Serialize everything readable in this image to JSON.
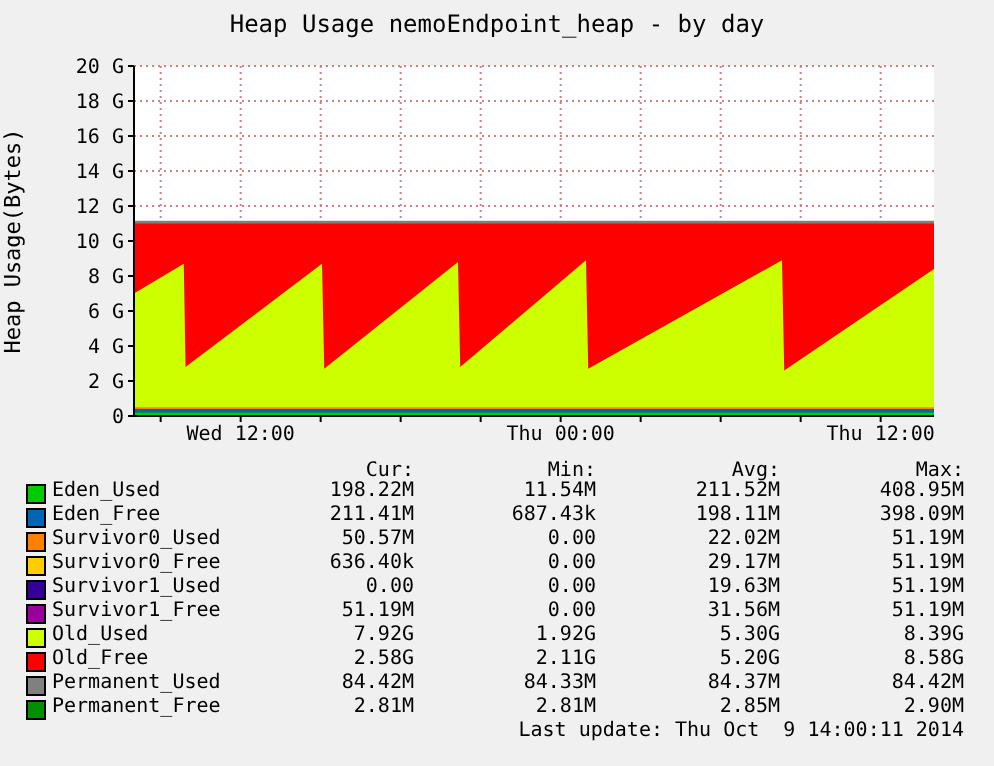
{
  "chart_data": {
    "type": "area",
    "stacked": true,
    "title": "Heap Usage nemoEndpoint_heap - by day",
    "ylabel": "Heap Usage(Bytes)",
    "x": [
      "2014-10-08T08:00",
      "2014-10-08T09:52",
      "2014-10-08T09:56",
      "2014-10-08T15:03",
      "2014-10-08T15:08",
      "2014-10-08T20:09",
      "2014-10-08T20:14",
      "2014-10-09T00:57",
      "2014-10-09T01:02",
      "2014-10-09T08:18",
      "2014-10-09T08:23",
      "2014-10-09T14:00"
    ],
    "series": [
      {
        "name": "Eden_Used",
        "color": "#00cc00",
        "values": [
          0.2,
          0.2,
          0.2,
          0.2,
          0.2,
          0.2,
          0.2,
          0.2,
          0.2,
          0.2,
          0.2,
          0.2
        ]
      },
      {
        "name": "Eden_Free",
        "color": "#0066b3",
        "values": [
          0.2,
          0.2,
          0.2,
          0.2,
          0.2,
          0.2,
          0.2,
          0.2,
          0.2,
          0.2,
          0.2,
          0.2
        ]
      },
      {
        "name": "Survivor0_Used",
        "color": "#ff8000",
        "values": [
          0.1,
          0.1,
          0.1,
          0.1,
          0.1,
          0.1,
          0.1,
          0.1,
          0.1,
          0.1,
          0.1,
          0.1
        ]
      },
      {
        "name": "Survivor0_Free",
        "color": "#ffcc00",
        "values": [
          null,
          null,
          null,
          null,
          null,
          null,
          null,
          null,
          null,
          null,
          null,
          null
        ]
      },
      {
        "name": "Survivor1_Used",
        "color": "#330099",
        "values": [
          null,
          null,
          null,
          null,
          null,
          null,
          null,
          null,
          null,
          null,
          null,
          null
        ]
      },
      {
        "name": "Survivor1_Free",
        "color": "#990099",
        "values": [
          null,
          null,
          null,
          null,
          null,
          null,
          null,
          null,
          null,
          null,
          null,
          null
        ]
      },
      {
        "name": "Old_Used",
        "color": "#ccff00",
        "values": [
          6.5,
          8.2,
          2.3,
          8.2,
          2.2,
          8.3,
          2.3,
          8.4,
          2.2,
          8.4,
          2.1,
          7.9
        ]
      },
      {
        "name": "Old_Free",
        "color": "#ff0000",
        "values": [
          4.0,
          2.3,
          8.2,
          2.3,
          8.3,
          2.2,
          8.2,
          2.1,
          8.3,
          2.1,
          8.4,
          2.6
        ]
      },
      {
        "name": "Permanent_Used",
        "color": "#808080",
        "values": [
          0.1,
          0.1,
          0.1,
          0.1,
          0.1,
          0.1,
          0.1,
          0.1,
          0.1,
          0.1,
          0.1,
          0.1
        ]
      },
      {
        "name": "Permanent_Free",
        "color": "#008f00",
        "values": [
          null,
          null,
          null,
          null,
          null,
          null,
          null,
          null,
          null,
          null,
          null,
          null
        ]
      }
    ],
    "xlim": [
      "2014-10-08T08:00",
      "2014-10-09T14:00"
    ],
    "xticks": [
      {
        "value": "2014-10-08T09:00",
        "label": null
      },
      {
        "value": "2014-10-08T12:00",
        "label": "Wed 12:00"
      },
      {
        "value": "2014-10-08T15:00",
        "label": null
      },
      {
        "value": "2014-10-08T18:00",
        "label": null
      },
      {
        "value": "2014-10-08T21:00",
        "label": null
      },
      {
        "value": "2014-10-09T00:00",
        "label": "Thu 00:00"
      },
      {
        "value": "2014-10-09T03:00",
        "label": null
      },
      {
        "value": "2014-10-09T06:00",
        "label": null
      },
      {
        "value": "2014-10-09T09:00",
        "label": null
      },
      {
        "value": "2014-10-09T12:00",
        "label": "Thu 12:00"
      }
    ],
    "ylim": [
      0,
      20
    ],
    "yticks": [
      0,
      {
        "value": 2,
        "label": "2 G"
      },
      {
        "value": 4,
        "label": "4 G"
      },
      {
        "value": 6,
        "label": "6 G"
      },
      {
        "value": 8,
        "label": "8 G"
      },
      {
        "value": 10,
        "label": "10 G"
      },
      {
        "value": 12,
        "label": "12 G"
      },
      {
        "value": 14,
        "label": "14 G"
      },
      {
        "value": 16,
        "label": "16 G"
      },
      {
        "value": 18,
        "label": "18 G"
      },
      {
        "value": 20,
        "label": "20 G"
      }
    ],
    "grid": true,
    "legend": "bottom",
    "annotations": [
      "Cur: Min: Avg: Max:",
      "198.22M 11.54M 211.52M 408.95M",
      "211.41M 687.43k 198.11M 398.09M",
      "50.57M 0.00 22.02M 51.19M",
      "636.40k 0.00 29.17M 51.19M",
      "0.00 0.00 19.63M 51.19M",
      "51.19M 0.00 31.56M 51.19M",
      "7.92G 1.92G 5.30G 8.39G",
      "2.58G 2.11G 5.20G 8.58G",
      "84.42M 84.33M 84.37M 84.42M",
      "2.81M 2.81M 2.85M 2.90M",
      "Last update: Thu Oct  9 14:00:11 2014"
    ]
  }
}
